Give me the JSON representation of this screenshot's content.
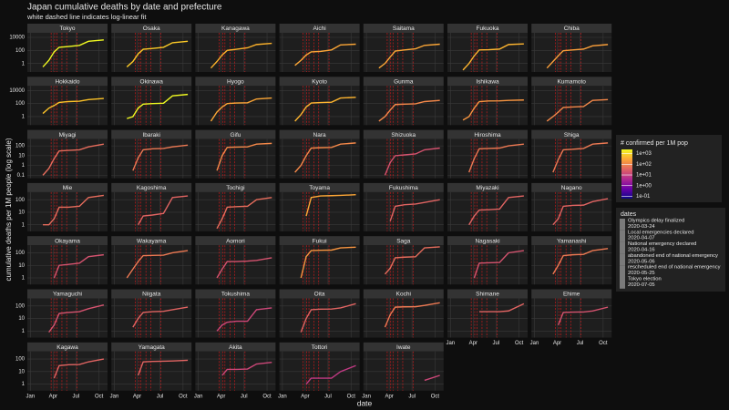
{
  "chart_data": {
    "type": "line",
    "title": "Japan cumulative deaths by date and prefecture",
    "subtitle": "white dashed line indicates log-linear fit",
    "xlabel": "date",
    "ylabel": "cumulative deaths per 1M people (log scale)",
    "log_y": true,
    "grid": true,
    "xlim": [
      "2019-12-20",
      "2020-11-04"
    ],
    "xticks": [
      {
        "value": "2020-01-01",
        "label": "Jan"
      },
      {
        "value": "2020-04-01",
        "label": "Apr"
      },
      {
        "value": "2020-07-01",
        "label": "Jul"
      },
      {
        "value": "2020-10-01",
        "label": "Oct"
      }
    ],
    "x": [
      "2020-02-20",
      "2020-03-15",
      "2020-04-05",
      "2020-04-25",
      "2020-06-01",
      "2020-07-15",
      "2020-08-20",
      "2020-10-20"
    ],
    "rows": [
      {
        "ylim": [
          0.05,
          50000
        ],
        "yticks": [
          1,
          100,
          10000
        ]
      },
      {
        "ylim": [
          0.05,
          50000
        ],
        "yticks": [
          1,
          100,
          10000
        ]
      },
      {
        "ylim": [
          0.05,
          500
        ],
        "yticks": [
          0.1,
          1,
          10,
          100
        ]
      },
      {
        "ylim": [
          0.3,
          400
        ],
        "yticks": [
          1,
          10,
          100
        ]
      },
      {
        "ylim": [
          0.3,
          400
        ],
        "yticks": [
          1,
          10,
          100
        ]
      },
      {
        "ylim": [
          0.3,
          400
        ],
        "yticks": [
          1,
          10,
          100
        ]
      },
      {
        "ylim": [
          0.3,
          400
        ],
        "yticks": [
          1,
          10,
          100
        ]
      }
    ],
    "series": [
      {
        "name": "Tokyo",
        "color": "#f0f921",
        "values": [
          0.3,
          3,
          60,
          300,
          400,
          600,
          2500,
          4000
        ]
      },
      {
        "name": "Osaka",
        "color": "#fdca26",
        "values": [
          0.3,
          2,
          30,
          150,
          200,
          300,
          1500,
          2500
        ]
      },
      {
        "name": "Kanagawa",
        "color": "#fcb12a",
        "values": [
          0.2,
          2,
          20,
          100,
          150,
          250,
          800,
          1200
        ]
      },
      {
        "name": "Aichi",
        "color": "#fca636",
        "values": [
          0.5,
          3,
          20,
          60,
          70,
          120,
          700,
          900
        ]
      },
      {
        "name": "Saitama",
        "color": "#fca636",
        "values": [
          0.2,
          1,
          10,
          80,
          120,
          180,
          600,
          900
        ]
      },
      {
        "name": "Fukuoka",
        "color": "#fdb42f",
        "values": [
          0.1,
          1,
          15,
          120,
          130,
          160,
          800,
          1000
        ]
      },
      {
        "name": "Chiba",
        "color": "#fb9f3a",
        "values": [
          0.2,
          2,
          15,
          90,
          120,
          160,
          500,
          800
        ]
      },
      {
        "name": "Hokkaido",
        "color": "#fdc328",
        "values": [
          3,
          20,
          50,
          150,
          200,
          230,
          400,
          600
        ]
      },
      {
        "name": "Okinawa",
        "color": "#f0f921",
        "values": [
          0.5,
          1,
          20,
          80,
          100,
          110,
          1500,
          2500
        ]
      },
      {
        "name": "Hyogo",
        "color": "#fca636",
        "values": [
          0.2,
          5,
          30,
          100,
          120,
          130,
          500,
          700
        ]
      },
      {
        "name": "Kyoto",
        "color": "#fdb42f",
        "values": [
          0.2,
          2,
          30,
          120,
          140,
          160,
          700,
          900
        ]
      },
      {
        "name": "Gunma",
        "color": "#f48849",
        "values": [
          0.2,
          1,
          10,
          70,
          80,
          90,
          200,
          300
        ]
      },
      {
        "name": "Ishikawa",
        "color": "#f89540",
        "values": [
          0.3,
          1,
          20,
          200,
          250,
          260,
          300,
          350
        ]
      },
      {
        "name": "Kumamoto",
        "color": "#f48849",
        "values": [
          0.2,
          1,
          5,
          25,
          30,
          35,
          300,
          400
        ]
      },
      {
        "name": "Miyagi",
        "color": "#e66c5c",
        "values": [
          0.1,
          0.5,
          5,
          30,
          35,
          40,
          80,
          150
        ]
      },
      {
        "name": "Ibaraki",
        "color": "#ed7953",
        "values": [
          null,
          0.3,
          6,
          40,
          50,
          55,
          80,
          120
        ]
      },
      {
        "name": "Gifu",
        "color": "#f48849",
        "values": [
          null,
          0.3,
          10,
          70,
          75,
          80,
          150,
          180
        ]
      },
      {
        "name": "Nara",
        "color": "#f48849",
        "values": [
          0.2,
          1,
          10,
          60,
          65,
          70,
          150,
          200
        ]
      },
      {
        "name": "Shizuoka",
        "color": "#d5536f",
        "values": [
          null,
          0.1,
          2,
          10,
          12,
          15,
          40,
          60
        ]
      },
      {
        "name": "Hiroshima",
        "color": "#ed7953",
        "values": [
          null,
          0.2,
          5,
          50,
          55,
          60,
          100,
          150
        ]
      },
      {
        "name": "Shiga",
        "color": "#ed7953",
        "values": [
          null,
          0.2,
          4,
          40,
          45,
          55,
          150,
          200
        ]
      },
      {
        "name": "Mie",
        "color": "#e66c5c",
        "values": [
          1,
          1,
          3,
          25,
          25,
          30,
          150,
          220
        ]
      },
      {
        "name": "Kagoshima",
        "color": "#e16462",
        "values": [
          null,
          null,
          1,
          5,
          6,
          8,
          150,
          200
        ]
      },
      {
        "name": "Tochigi",
        "color": "#e66c5c",
        "values": [
          null,
          0.5,
          3,
          25,
          28,
          30,
          100,
          150
        ]
      },
      {
        "name": "Toyama",
        "color": "#fca636",
        "values": [
          null,
          null,
          5,
          150,
          200,
          210,
          220,
          250
        ]
      },
      {
        "name": "Fukushima",
        "color": "#e16462",
        "values": [
          null,
          null,
          2,
          30,
          40,
          45,
          60,
          100
        ]
      },
      {
        "name": "Miyazaki",
        "color": "#e16462",
        "values": [
          null,
          1,
          5,
          15,
          16,
          18,
          150,
          200
        ]
      },
      {
        "name": "Nagano",
        "color": "#e16462",
        "values": [
          null,
          1,
          3,
          30,
          35,
          37,
          70,
          120
        ]
      },
      {
        "name": "Okayama",
        "color": "#d5536f",
        "values": [
          null,
          null,
          1,
          10,
          12,
          15,
          50,
          70
        ]
      },
      {
        "name": "Wakayama",
        "color": "#ed7953",
        "values": [
          1,
          5,
          20,
          60,
          62,
          65,
          100,
          150
        ]
      },
      {
        "name": "Aomori",
        "color": "#d5536f",
        "values": [
          null,
          1,
          5,
          20,
          20,
          22,
          25,
          40
        ]
      },
      {
        "name": "Fukui",
        "color": "#f89540",
        "values": [
          null,
          1,
          50,
          150,
          160,
          165,
          250,
          280
        ]
      },
      {
        "name": "Saga",
        "color": "#e66c5c",
        "values": [
          null,
          2,
          6,
          40,
          45,
          48,
          250,
          300
        ]
      },
      {
        "name": "Nagasaki",
        "color": "#d5536f",
        "values": [
          null,
          null,
          1,
          15,
          16,
          17,
          100,
          150
        ]
      },
      {
        "name": "Yamanashi",
        "color": "#ed7953",
        "values": [
          null,
          2,
          10,
          60,
          70,
          75,
          150,
          220
        ]
      },
      {
        "name": "Yamaguchi",
        "color": "#d5536f",
        "values": [
          null,
          0.8,
          3,
          25,
          30,
          35,
          60,
          120
        ]
      },
      {
        "name": "Niigata",
        "color": "#e16462",
        "values": [
          null,
          2,
          10,
          30,
          35,
          37,
          50,
          80
        ]
      },
      {
        "name": "Tokushima",
        "color": "#cc4778",
        "values": [
          null,
          1,
          3,
          5,
          6,
          6,
          50,
          70
        ]
      },
      {
        "name": "Oita",
        "color": "#e16462",
        "values": [
          null,
          0.8,
          10,
          50,
          55,
          57,
          70,
          150
        ]
      },
      {
        "name": "Kochi",
        "color": "#ed7953",
        "values": [
          null,
          2,
          20,
          80,
          85,
          87,
          110,
          180
        ]
      },
      {
        "name": "Shimane",
        "color": "#e16462",
        "values": [
          null,
          null,
          null,
          35,
          35,
          35,
          40,
          150
        ]
      },
      {
        "name": "Ehime",
        "color": "#d5536f",
        "values": [
          null,
          null,
          3,
          30,
          32,
          33,
          40,
          80
        ]
      },
      {
        "name": "Kagawa",
        "color": "#e16462",
        "values": [
          null,
          null,
          3,
          30,
          35,
          37,
          60,
          100
        ]
      },
      {
        "name": "Yamagata",
        "color": "#e16462",
        "values": [
          null,
          null,
          5,
          60,
          65,
          67,
          70,
          80
        ]
      },
      {
        "name": "Akita",
        "color": "#cc4778",
        "values": [
          null,
          null,
          5,
          15,
          15,
          16,
          40,
          55
        ]
      },
      {
        "name": "Tottori",
        "color": "#c03a83",
        "values": [
          null,
          null,
          1,
          3,
          3,
          3,
          10,
          30
        ]
      },
      {
        "name": "Iwate",
        "color": "#cc4778",
        "values": [
          null,
          null,
          null,
          null,
          null,
          null,
          2,
          5
        ]
      }
    ],
    "colorbar": {
      "title": "# confirmed per 1M pop",
      "lim": [
        0.06,
        2500
      ],
      "colors": [
        "#0d0887",
        "#6a00a8",
        "#b12a90",
        "#e16462",
        "#fca636",
        "#f0f921"
      ],
      "ticks": [
        {
          "value": 1000,
          "label": "1e+03"
        },
        {
          "value": 100,
          "label": "1e+02"
        },
        {
          "value": 10,
          "label": "1e+01"
        },
        {
          "value": 1,
          "label": "1e+00"
        },
        {
          "value": 0.1,
          "label": "1e-01"
        }
      ]
    },
    "events_title": "dates",
    "event_color": "#e31a1c",
    "events": [
      {
        "label": "Olympics delay finalized",
        "date": "2020-03-24"
      },
      {
        "label": "Local emergencies declared",
        "date": "2020-04-07"
      },
      {
        "label": "National emergency declared",
        "date": "2020-04-16"
      },
      {
        "label": "abandoned end of national emergency",
        "date": "2020-05-06"
      },
      {
        "label": "rescheduled end of national emergency",
        "date": "2020-05-25"
      },
      {
        "label": "Tokyo election",
        "date": "2020-07-05"
      }
    ]
  }
}
